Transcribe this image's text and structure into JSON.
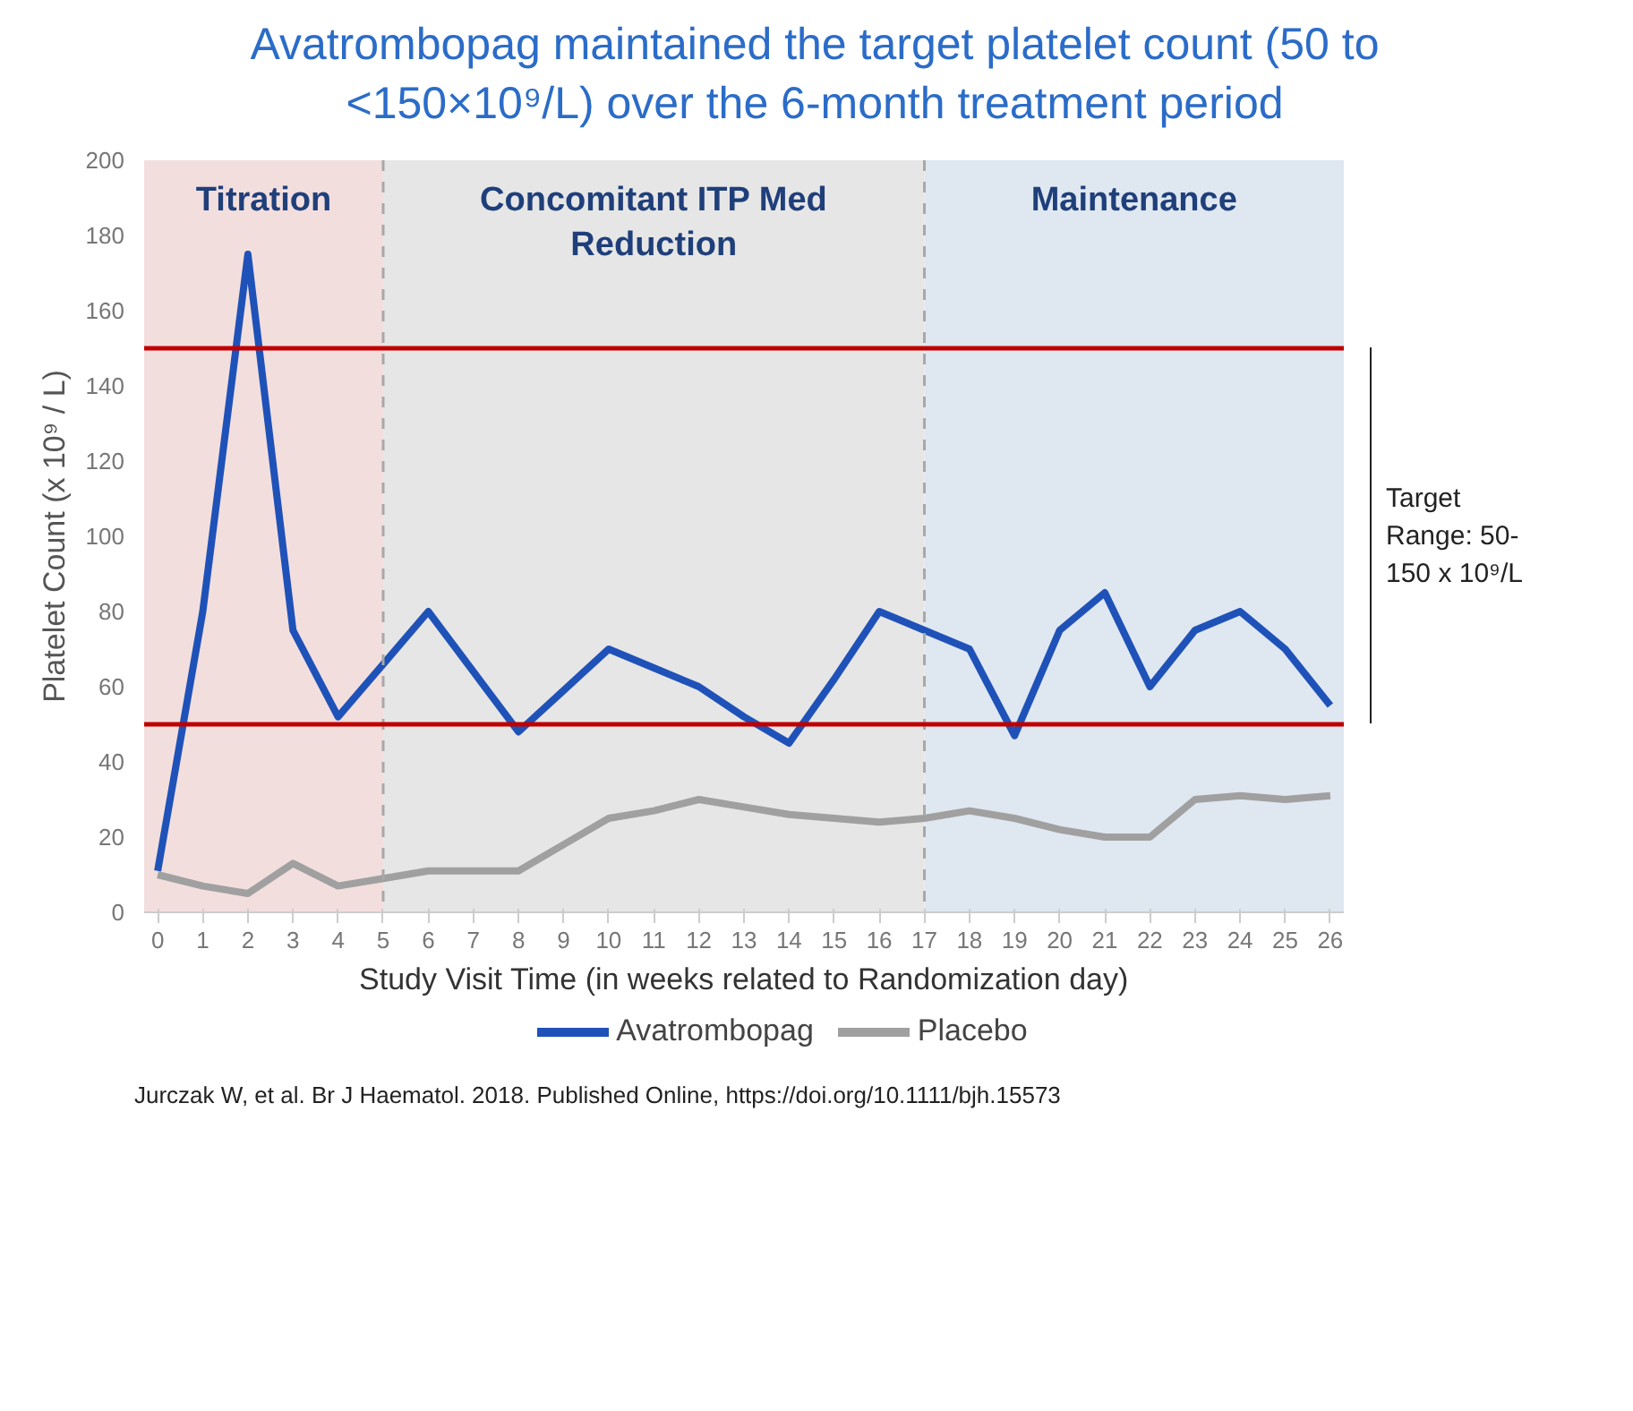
{
  "chart_data": {
    "type": "line",
    "title": "Avatrombopag maintained the target platelet count (50 to <150×10⁹/L) over the 6-month treatment period",
    "xlabel": "Study Visit Time (in weeks related to Randomization day)",
    "ylabel": "Platelet Count (x 10⁹ / L)",
    "x": [
      0,
      1,
      2,
      3,
      4,
      5,
      6,
      7,
      8,
      9,
      10,
      11,
      12,
      13,
      14,
      15,
      16,
      17,
      18,
      19,
      20,
      21,
      22,
      23,
      24,
      25,
      26
    ],
    "series": [
      {
        "name": "Avatrombopag",
        "color": "#1f52b8",
        "values": [
          11,
          80,
          175,
          75,
          52,
          66,
          80,
          64,
          48,
          59,
          70,
          65,
          60,
          52,
          45,
          62,
          80,
          75,
          70,
          47,
          75,
          85,
          60,
          75,
          80,
          70,
          55
        ]
      },
      {
        "name": "Placebo",
        "color": "#a0a0a0",
        "values": [
          10,
          7,
          5,
          13,
          7,
          9,
          11,
          11,
          11,
          18,
          25,
          27,
          30,
          28,
          26,
          25,
          24,
          25,
          27,
          25,
          22,
          20,
          20,
          30,
          31,
          30,
          31
        ]
      }
    ],
    "xlim": [
      -0.3,
      26.3
    ],
    "ylim": [
      0,
      200
    ],
    "xticks": [
      0,
      1,
      2,
      3,
      4,
      5,
      6,
      7,
      8,
      9,
      10,
      11,
      12,
      13,
      14,
      15,
      16,
      17,
      18,
      19,
      20,
      21,
      22,
      23,
      24,
      25,
      26
    ],
    "yticks": [
      0,
      20,
      40,
      60,
      80,
      100,
      120,
      140,
      160,
      180,
      200
    ],
    "bands": [
      {
        "axis": "x",
        "from": -0.3,
        "to": 5,
        "label": "Titration",
        "color": "#f3dede"
      },
      {
        "axis": "x",
        "from": 5,
        "to": 17,
        "label": "Concomitant ITP Med Reduction",
        "color": "#e6e6e6"
      },
      {
        "axis": "x",
        "from": 17,
        "to": 26.3,
        "label": "Maintenance",
        "color": "#dfe7f1"
      }
    ],
    "ref_lines": [
      {
        "axis": "x",
        "value": 5,
        "color": "#a8a8a8",
        "line_style": "dashed"
      },
      {
        "axis": "x",
        "value": 17,
        "color": "#a8a8a8",
        "line_style": "dashed"
      },
      {
        "axis": "y",
        "value": 150,
        "color": "#c00000"
      },
      {
        "axis": "y",
        "value": 50,
        "color": "#c00000"
      }
    ],
    "annotations": [
      "Target Range: 50-150 x 10⁹/L",
      "Jurczak W, et al. Br J Haematol. 2018. Published Online, https://doi.org/10.1111/bjh.15573"
    ],
    "legend": "bottom",
    "grid": false,
    "marker": "none",
    "line_style": "solid"
  }
}
